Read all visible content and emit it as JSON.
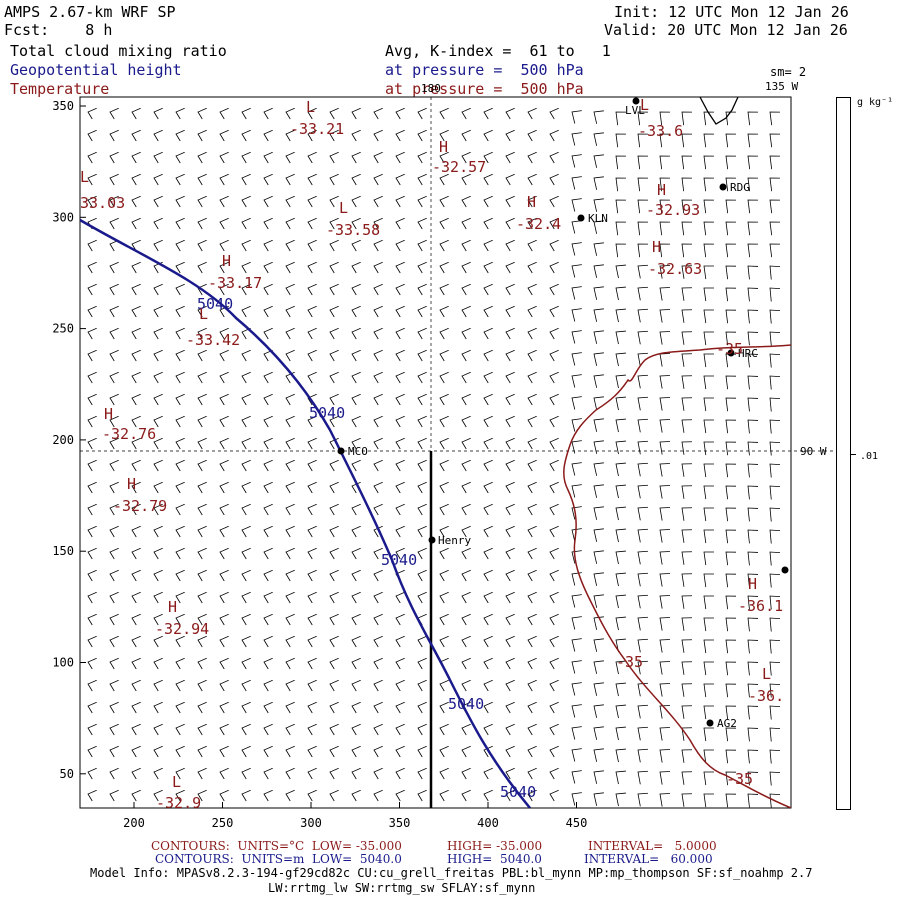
{
  "header": {
    "model": "AMPS 2.67-km WRF SP",
    "init": "Init: 12 UTC Mon 12 Jan 26",
    "fcst": "Fcst:    8 h",
    "valid": "Valid: 20 UTC Mon 12 Jan 26",
    "field1": "Total cloud mixing ratio",
    "field2": "Geopotential height",
    "field3": "Temperature",
    "avg": "Avg, K-index =  61 to   1",
    "pressure1": "at pressure =  500 hPa",
    "pressure2": "at pressure =  500 hPa",
    "sm": "sm= 2"
  },
  "map": {
    "x_ticks": [
      "200",
      "250",
      "300",
      "350",
      "400",
      "450"
    ],
    "y_ticks": [
      "350",
      "300",
      "250",
      "200",
      "150",
      "100",
      "50"
    ],
    "meridian_top": "180",
    "meridian_135": "135 W",
    "meridian_90": "90 W",
    "stations": {
      "ldg": "RDG",
      "kln": "KLN",
      "mcm": "MCO",
      "henry": "Henry",
      "hrc": "HRC",
      "ag2": "AG2",
      "lvl": "LVL"
    },
    "height_labels": [
      "5040",
      "5040",
      "5040",
      "5040",
      "5040"
    ],
    "temp_contour_labels": [
      "-35",
      "-35",
      "-35"
    ],
    "extrema": [
      {
        "letter": "L",
        "value": "-33.21"
      },
      {
        "letter": "H",
        "value": "-32.57"
      },
      {
        "letter": "L",
        "value": "-33.6"
      },
      {
        "letter": "L",
        "value": "33.03"
      },
      {
        "letter": "L",
        "value": "-33.58"
      },
      {
        "letter": "H",
        "value": "-32.4"
      },
      {
        "letter": "H",
        "value": "-32.93"
      },
      {
        "letter": "H",
        "value": "-32.63"
      },
      {
        "letter": "H",
        "value": "-33.17"
      },
      {
        "letter": "L",
        "value": "-33.42"
      },
      {
        "letter": "H",
        "value": "-32.76"
      },
      {
        "letter": "H",
        "value": "-32.79"
      },
      {
        "letter": "H",
        "value": "-32.94"
      },
      {
        "letter": "H",
        "value": "-36.1"
      },
      {
        "letter": "L",
        "value": "-36."
      },
      {
        "letter": "L",
        "value": "-32.9"
      }
    ]
  },
  "colorbar": {
    "unit": "g kg⁻¹",
    "tick": ".01"
  },
  "footer": {
    "line1_a": "CONTOURS:  UNITS=°C  LOW= -35.000",
    "line1_b": "HIGH= -35.000",
    "line1_c": "INTERVAL=   5.0000",
    "line2_a": "CONTOURS:  UNITS=m  LOW=  5040.0",
    "line2_b": "HIGH=  5040.0",
    "line2_c": "INTERVAL=   60.000",
    "model_info": "Model Info: MPASv8.2.3-194-gf29cd82c CU:cu_grell_freitas PBL:bl_mynn MP:mp_thompson SF:sf_noahmp 2.7",
    "model_info2": "LW:rrtmg_lw SW:rrtmg_sw SFLAY:sf_mynn"
  },
  "colors": {
    "height": "#1a1a8c",
    "temperature": "#8b1a1a",
    "text_blue": "#1a1a8c",
    "text_red": "#8b1a1a"
  }
}
